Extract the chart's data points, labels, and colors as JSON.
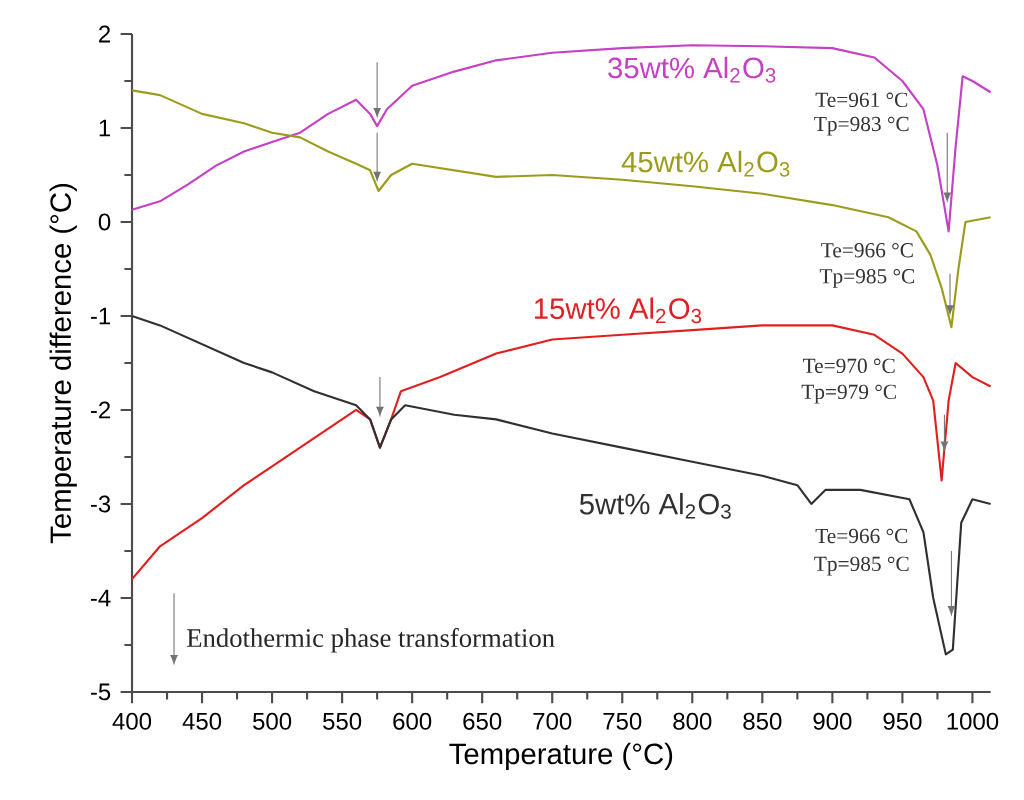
{
  "chart_data": {
    "type": "line",
    "xlabel": "Temperature (°C)",
    "ylabel": "Temperature difference (°C)",
    "xlim": [
      400,
      1013
    ],
    "ylim": [
      -5,
      2
    ],
    "xticks": [
      400,
      450,
      500,
      550,
      600,
      650,
      700,
      750,
      800,
      850,
      900,
      950,
      1000
    ],
    "yticks": [
      -5,
      -4,
      -3,
      -2,
      -1,
      0,
      1,
      2
    ],
    "grid": false,
    "marker": "none",
    "line_style": "solid",
    "series": [
      {
        "name": "35wt% Al$_{2}$O$_{3}$",
        "color": "#c440c4",
        "x": [
          400,
          420,
          440,
          460,
          480,
          500,
          520,
          540,
          560,
          570,
          575,
          582,
          600,
          630,
          660,
          700,
          750,
          800,
          850,
          900,
          930,
          950,
          965,
          975,
          983,
          988,
          993,
          1000,
          1013
        ],
        "values": [
          0.13,
          0.22,
          0.4,
          0.6,
          0.75,
          0.85,
          0.95,
          1.15,
          1.3,
          1.15,
          1.02,
          1.2,
          1.45,
          1.6,
          1.72,
          1.8,
          1.85,
          1.88,
          1.87,
          1.85,
          1.75,
          1.5,
          1.2,
          0.6,
          -0.1,
          0.8,
          1.55,
          1.5,
          1.38
        ]
      },
      {
        "name": "45wt% Al$_{2}$O$_{3}$",
        "color": "#9c9c1c",
        "x": [
          400,
          420,
          450,
          480,
          500,
          520,
          540,
          560,
          570,
          576,
          585,
          600,
          630,
          660,
          700,
          750,
          800,
          850,
          900,
          940,
          960,
          970,
          978,
          985,
          990,
          995,
          1013
        ],
        "values": [
          1.4,
          1.35,
          1.15,
          1.05,
          0.95,
          0.9,
          0.75,
          0.62,
          0.55,
          0.33,
          0.5,
          0.62,
          0.55,
          0.48,
          0.5,
          0.45,
          0.38,
          0.3,
          0.18,
          0.05,
          -0.1,
          -0.35,
          -0.7,
          -1.12,
          -0.5,
          0.0,
          0.05
        ]
      },
      {
        "name": "15wt% Al$_{2}$O$_{3}$",
        "color": "#e02020",
        "x": [
          400,
          420,
          450,
          480,
          500,
          530,
          560,
          570,
          577,
          585,
          592,
          620,
          660,
          700,
          750,
          800,
          850,
          900,
          930,
          950,
          965,
          972,
          978,
          983,
          988,
          1000,
          1013
        ],
        "values": [
          -3.8,
          -3.45,
          -3.15,
          -2.8,
          -2.6,
          -2.3,
          -2.0,
          -2.1,
          -2.4,
          -2.1,
          -1.8,
          -1.65,
          -1.4,
          -1.25,
          -1.2,
          -1.15,
          -1.1,
          -1.1,
          -1.2,
          -1.4,
          -1.65,
          -1.9,
          -2.75,
          -1.9,
          -1.5,
          -1.65,
          -1.75
        ]
      },
      {
        "name": "5wt% Al$_{2}$O$_{3}$",
        "color": "#303030",
        "x": [
          400,
          420,
          450,
          480,
          500,
          530,
          560,
          570,
          577,
          585,
          595,
          630,
          660,
          700,
          750,
          800,
          850,
          875,
          885,
          895,
          920,
          955,
          965,
          972,
          981,
          986,
          992,
          1000,
          1013
        ],
        "values": [
          -1.0,
          -1.1,
          -1.3,
          -1.5,
          -1.6,
          -1.8,
          -1.95,
          -2.1,
          -2.4,
          -2.1,
          -1.95,
          -2.05,
          -2.1,
          -2.25,
          -2.4,
          -2.55,
          -2.7,
          -2.8,
          -3.0,
          -2.85,
          -2.85,
          -2.95,
          -3.3,
          -4.0,
          -4.6,
          -4.55,
          -3.2,
          -2.95,
          -3.0
        ]
      }
    ],
    "annotations": [
      "Te=961 °C",
      "Tp=983 °C",
      "Te=966 °C",
      "Tp=985 °C",
      "Te=970 °C",
      "Tp=979 °C",
      "Te=966 °C",
      "Tp=985 °C",
      "Endothermic phase transformation"
    ]
  }
}
